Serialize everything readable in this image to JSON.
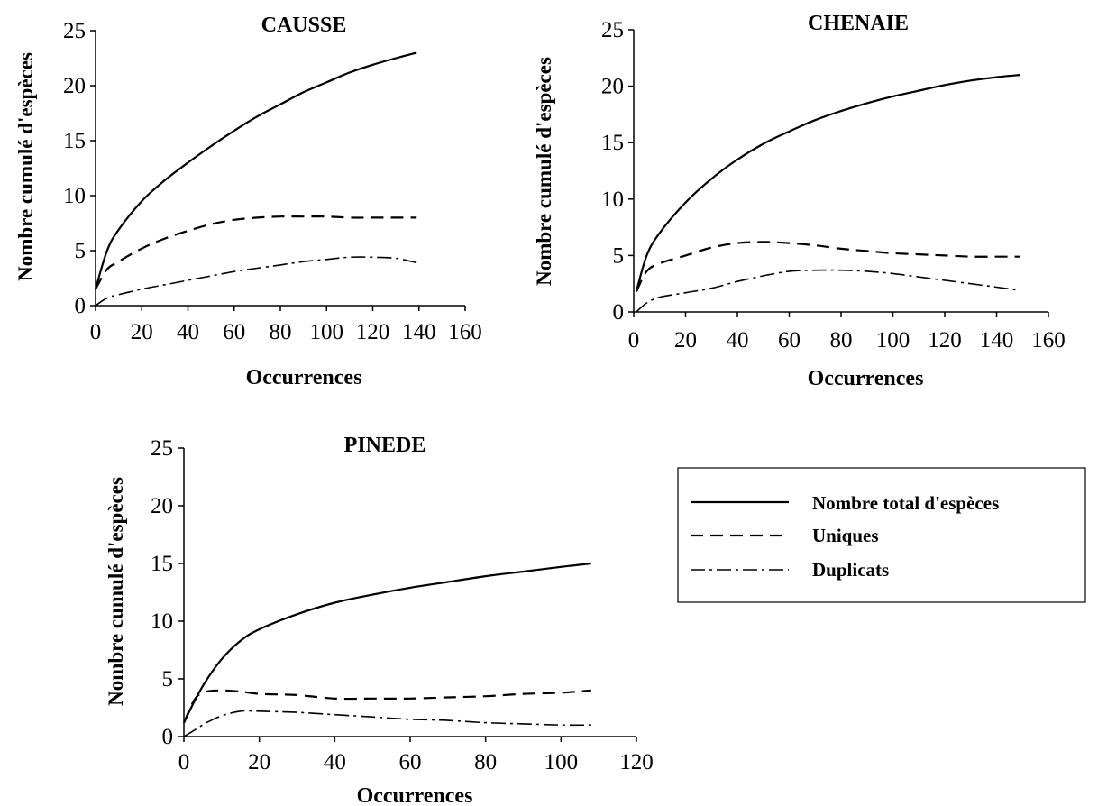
{
  "chart_data": [
    {
      "type": "line",
      "title": "CAUSSE",
      "xlabel": "Occurrences",
      "ylabel": "Nombre cumulé d'espèces",
      "xlim": [
        0,
        160
      ],
      "ylim": [
        0,
        25
      ],
      "xticks": [
        "0",
        "20",
        "40",
        "60",
        "80",
        "100",
        "120",
        "140",
        "160"
      ],
      "yticks": [
        "0",
        "5",
        "10",
        "15",
        "20",
        "25"
      ],
      "grid": false,
      "series": [
        {
          "key": "total",
          "name": "Nombre total d'espèces",
          "x": [
            0,
            5,
            10,
            20,
            30,
            40,
            50,
            60,
            70,
            80,
            90,
            100,
            110,
            120,
            130,
            139
          ],
          "y": [
            1.5,
            5.0,
            6.9,
            9.5,
            11.4,
            13.0,
            14.5,
            15.9,
            17.2,
            18.3,
            19.4,
            20.3,
            21.2,
            21.9,
            22.5,
            23.0
          ]
        },
        {
          "key": "uniques",
          "name": "Uniques",
          "x": [
            0,
            5,
            10,
            20,
            30,
            40,
            50,
            60,
            70,
            80,
            90,
            100,
            110,
            120,
            130,
            139
          ],
          "y": [
            1.5,
            3.3,
            4.0,
            5.2,
            6.1,
            6.8,
            7.4,
            7.8,
            8.0,
            8.1,
            8.1,
            8.1,
            8.0,
            8.0,
            8.0,
            8.0
          ]
        },
        {
          "key": "duplicats",
          "name": "Duplicats",
          "x": [
            0,
            5,
            10,
            20,
            30,
            40,
            50,
            60,
            70,
            80,
            90,
            100,
            110,
            120,
            130,
            139
          ],
          "y": [
            0,
            0.7,
            1.0,
            1.5,
            1.9,
            2.3,
            2.7,
            3.1,
            3.4,
            3.7,
            4.0,
            4.2,
            4.4,
            4.4,
            4.3,
            3.9
          ]
        }
      ]
    },
    {
      "type": "line",
      "title": "CHENAIE",
      "xlabel": "Occurrences",
      "ylabel": "Nombre cumulé d'espèces",
      "xlim": [
        0,
        160
      ],
      "ylim": [
        0,
        25
      ],
      "xticks": [
        "0",
        "20",
        "40",
        "60",
        "80",
        "100",
        "120",
        "140",
        "160"
      ],
      "yticks": [
        "0",
        "5",
        "10",
        "15",
        "20",
        "25"
      ],
      "grid": false,
      "series": [
        {
          "key": "total",
          "name": "Nombre total d'espèces",
          "x": [
            1,
            5,
            10,
            20,
            30,
            40,
            50,
            60,
            70,
            80,
            90,
            100,
            110,
            120,
            130,
            140,
            149
          ],
          "y": [
            1.8,
            5.0,
            7.0,
            9.7,
            11.8,
            13.5,
            14.9,
            16.0,
            17.0,
            17.8,
            18.5,
            19.1,
            19.6,
            20.1,
            20.5,
            20.8,
            21.0
          ]
        },
        {
          "key": "uniques",
          "name": "Uniques",
          "x": [
            1,
            5,
            10,
            20,
            30,
            40,
            50,
            60,
            70,
            80,
            90,
            100,
            110,
            120,
            130,
            140,
            149
          ],
          "y": [
            1.8,
            3.6,
            4.3,
            5.0,
            5.7,
            6.1,
            6.2,
            6.1,
            5.9,
            5.6,
            5.4,
            5.2,
            5.1,
            5.0,
            4.9,
            4.9,
            4.9
          ]
        },
        {
          "key": "duplicats",
          "name": "Duplicats",
          "x": [
            1,
            5,
            10,
            20,
            30,
            40,
            50,
            60,
            70,
            80,
            90,
            100,
            110,
            120,
            130,
            140,
            149
          ],
          "y": [
            0,
            0.8,
            1.3,
            1.7,
            2.1,
            2.7,
            3.2,
            3.6,
            3.7,
            3.7,
            3.6,
            3.4,
            3.1,
            2.8,
            2.5,
            2.2,
            1.9
          ]
        }
      ]
    },
    {
      "type": "line",
      "title": "PINEDE",
      "xlabel": "Occurrences",
      "ylabel": "Nombre cumulé d'espèces",
      "xlim": [
        0,
        120
      ],
      "ylim": [
        0,
        25
      ],
      "xticks": [
        "0",
        "20",
        "40",
        "60",
        "80",
        "100",
        "120"
      ],
      "yticks": [
        "0",
        "5",
        "10",
        "15",
        "20",
        "25"
      ],
      "grid": false,
      "series": [
        {
          "key": "total",
          "name": "Nombre total d'espèces",
          "x": [
            0,
            3,
            6,
            10,
            15,
            20,
            30,
            40,
            50,
            60,
            70,
            80,
            90,
            100,
            108
          ],
          "y": [
            1.2,
            3.2,
            4.9,
            6.7,
            8.3,
            9.3,
            10.6,
            11.6,
            12.3,
            12.9,
            13.4,
            13.9,
            14.3,
            14.7,
            15.0
          ]
        },
        {
          "key": "uniques",
          "name": "Uniques",
          "x": [
            0,
            3,
            6,
            10,
            15,
            20,
            30,
            40,
            50,
            60,
            70,
            80,
            90,
            100,
            108
          ],
          "y": [
            1.2,
            3.3,
            3.9,
            4.0,
            3.9,
            3.7,
            3.6,
            3.3,
            3.3,
            3.3,
            3.4,
            3.5,
            3.7,
            3.8,
            4.0
          ]
        },
        {
          "key": "duplicats",
          "name": "Duplicats",
          "x": [
            0,
            3,
            6,
            10,
            15,
            20,
            30,
            40,
            50,
            60,
            70,
            80,
            90,
            100,
            108
          ],
          "y": [
            0,
            0.6,
            1.2,
            1.8,
            2.2,
            2.2,
            2.1,
            1.9,
            1.7,
            1.5,
            1.4,
            1.2,
            1.1,
            1.0,
            1.0
          ]
        }
      ]
    }
  ],
  "legend": {
    "placement": "right",
    "items": [
      {
        "key": "total",
        "label": "Nombre total d'espèces",
        "style": "solid"
      },
      {
        "key": "uniques",
        "label": "Uniques",
        "style": "dashed"
      },
      {
        "key": "duplicats",
        "label": "Duplicats",
        "style": "dash-dot"
      }
    ]
  },
  "colors": {
    "line": "#000000",
    "axis": "#000000",
    "background": "#ffffff"
  }
}
